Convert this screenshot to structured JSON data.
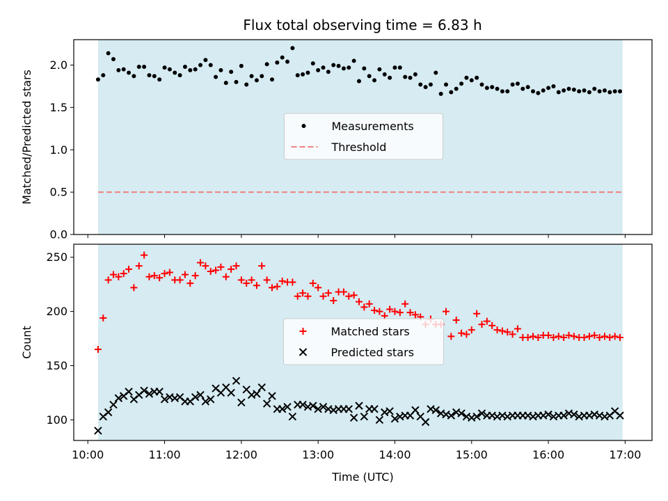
{
  "title": "Flux total observing time = 6.83 h",
  "colors": {
    "shade": "#add8e6",
    "measurement": "#000000",
    "threshold": "#f08080",
    "matched": "#ff0000",
    "predicted": "#000000"
  },
  "chart_data": [
    {
      "type": "scatter",
      "ylabel": "Matched/Predicted stars",
      "xlim": [
        "09:49",
        "17:21"
      ],
      "ylim": [
        0,
        2.3
      ],
      "yticks": [
        "0.0",
        "0.5",
        "1.0",
        "1.5",
        "2.0"
      ],
      "shaded_interval": [
        "10:08",
        "16:58"
      ],
      "legend": {
        "placement": "center",
        "entries": [
          "Measurements",
          "Threshold"
        ]
      },
      "threshold": {
        "name": "Threshold",
        "value": 0.5,
        "xrange": [
          "10:08",
          "16:58"
        ]
      },
      "series": [
        {
          "name": "Measurements",
          "x": [
            "10:08",
            "10:12",
            "10:16",
            "10:20",
            "10:24",
            "10:28",
            "10:32",
            "10:36",
            "10:40",
            "10:44",
            "10:48",
            "10:52",
            "10:56",
            "11:00",
            "11:04",
            "11:08",
            "11:12",
            "11:16",
            "11:20",
            "11:24",
            "11:28",
            "11:32",
            "11:36",
            "11:40",
            "11:44",
            "11:48",
            "11:52",
            "11:56",
            "12:00",
            "12:04",
            "12:08",
            "12:12",
            "12:16",
            "12:20",
            "12:24",
            "12:28",
            "12:32",
            "12:36",
            "12:40",
            "12:44",
            "12:48",
            "12:52",
            "12:56",
            "13:00",
            "13:04",
            "13:08",
            "13:12",
            "13:16",
            "13:20",
            "13:24",
            "13:28",
            "13:32",
            "13:36",
            "13:40",
            "13:44",
            "13:48",
            "13:52",
            "13:56",
            "14:00",
            "14:04",
            "14:08",
            "14:12",
            "14:16",
            "14:20",
            "14:24",
            "14:28",
            "14:32",
            "14:36",
            "14:40",
            "14:44",
            "14:48",
            "14:52",
            "14:56",
            "15:00",
            "15:04",
            "15:08",
            "15:12",
            "15:16",
            "15:20",
            "15:24",
            "15:28",
            "15:32",
            "15:36",
            "15:40",
            "15:44",
            "15:48",
            "15:52",
            "15:56",
            "16:00",
            "16:04",
            "16:08",
            "16:12",
            "16:16",
            "16:20",
            "16:24",
            "16:28",
            "16:32",
            "16:36",
            "16:40",
            "16:44",
            "16:48",
            "16:52",
            "16:56"
          ],
          "y": [
            1.83,
            1.88,
            2.14,
            2.07,
            1.94,
            1.95,
            1.91,
            1.87,
            1.98,
            1.98,
            1.88,
            1.87,
            1.83,
            1.97,
            1.95,
            1.91,
            1.88,
            1.98,
            1.94,
            1.95,
            2.0,
            2.06,
            2.0,
            1.86,
            1.94,
            1.79,
            1.92,
            1.8,
            1.99,
            1.77,
            1.87,
            1.82,
            1.87,
            2.01,
            1.83,
            2.03,
            2.09,
            2.04,
            2.2,
            1.88,
            1.89,
            1.91,
            2.02,
            1.94,
            1.97,
            1.92,
            2.0,
            1.99,
            1.96,
            1.97,
            2.05,
            1.81,
            1.96,
            1.87,
            1.82,
            1.95,
            1.89,
            1.85,
            1.97,
            1.97,
            1.86,
            1.85,
            1.89,
            1.77,
            1.74,
            1.77,
            1.91,
            1.66,
            1.77,
            1.68,
            1.72,
            1.78,
            1.85,
            1.82,
            1.85,
            1.77,
            1.73,
            1.74,
            1.72,
            1.69,
            1.69,
            1.77,
            1.78,
            1.72,
            1.74,
            1.69,
            1.67,
            1.7,
            1.73,
            1.75,
            1.68,
            1.7,
            1.72,
            1.71,
            1.69,
            1.7,
            1.68,
            1.72,
            1.69,
            1.7,
            1.68,
            1.69,
            1.69
          ]
        }
      ]
    },
    {
      "type": "scatter",
      "xlabel": "Time (UTC)",
      "ylabel": "Count",
      "xlim": [
        "09:49",
        "17:21"
      ],
      "ylim": [
        81,
        262
      ],
      "xticks": [
        "10:00",
        "11:00",
        "12:00",
        "13:00",
        "14:00",
        "15:00",
        "16:00",
        "17:00"
      ],
      "yticks": [
        "100",
        "150",
        "200",
        "250"
      ],
      "shaded_interval": [
        "10:08",
        "16:58"
      ],
      "legend": {
        "placement": "center",
        "entries": [
          "Matched stars",
          "Predicted stars"
        ]
      },
      "series": [
        {
          "name": "Matched stars",
          "x": [
            "10:08",
            "10:12",
            "10:16",
            "10:20",
            "10:24",
            "10:28",
            "10:32",
            "10:36",
            "10:40",
            "10:44",
            "10:48",
            "10:52",
            "10:56",
            "11:00",
            "11:04",
            "11:08",
            "11:12",
            "11:16",
            "11:20",
            "11:24",
            "11:28",
            "11:32",
            "11:36",
            "11:40",
            "11:44",
            "11:48",
            "11:52",
            "11:56",
            "12:00",
            "12:04",
            "12:08",
            "12:12",
            "12:16",
            "12:20",
            "12:24",
            "12:28",
            "12:32",
            "12:36",
            "12:40",
            "12:44",
            "12:48",
            "12:52",
            "12:56",
            "13:00",
            "13:04",
            "13:08",
            "13:12",
            "13:16",
            "13:20",
            "13:24",
            "13:28",
            "13:32",
            "13:36",
            "13:40",
            "13:44",
            "13:48",
            "13:52",
            "13:56",
            "14:00",
            "14:04",
            "14:08",
            "14:12",
            "14:16",
            "14:20",
            "14:24",
            "14:28",
            "14:32",
            "14:36",
            "14:40",
            "14:44",
            "14:48",
            "14:52",
            "14:56",
            "15:00",
            "15:04",
            "15:08",
            "15:12",
            "15:16",
            "15:20",
            "15:24",
            "15:28",
            "15:32",
            "15:36",
            "15:40",
            "15:44",
            "15:48",
            "15:52",
            "15:56",
            "16:00",
            "16:04",
            "16:08",
            "16:12",
            "16:16",
            "16:20",
            "16:24",
            "16:28",
            "16:32",
            "16:36",
            "16:40",
            "16:44",
            "16:48",
            "16:52",
            "16:56"
          ],
          "y": [
            165,
            194,
            229,
            234,
            232,
            235,
            239,
            222,
            242,
            252,
            232,
            233,
            231,
            235,
            236,
            229,
            229,
            234,
            226,
            233,
            245,
            242,
            237,
            238,
            241,
            232,
            239,
            242,
            229,
            226,
            229,
            224,
            242,
            229,
            222,
            223,
            228,
            227,
            227,
            214,
            217,
            214,
            226,
            222,
            214,
            217,
            210,
            218,
            218,
            214,
            215,
            209,
            204,
            207,
            201,
            200,
            196,
            202,
            200,
            199,
            207,
            199,
            197,
            195,
            188,
            193,
            188,
            188,
            200,
            177,
            192,
            180,
            179,
            183,
            198,
            188,
            191,
            187,
            183,
            182,
            181,
            179,
            184,
            176,
            176,
            177,
            176,
            178,
            178,
            176,
            177,
            176,
            178,
            177,
            176,
            176,
            177,
            178,
            176,
            177,
            176,
            177,
            176
          ]
        },
        {
          "name": "Predicted stars",
          "x": [
            "10:08",
            "10:12",
            "10:16",
            "10:20",
            "10:24",
            "10:28",
            "10:32",
            "10:36",
            "10:40",
            "10:44",
            "10:48",
            "10:52",
            "10:56",
            "11:00",
            "11:04",
            "11:08",
            "11:12",
            "11:16",
            "11:20",
            "11:24",
            "11:28",
            "11:32",
            "11:36",
            "11:40",
            "11:44",
            "11:48",
            "11:52",
            "11:56",
            "12:00",
            "12:04",
            "12:08",
            "12:12",
            "12:16",
            "12:20",
            "12:24",
            "12:28",
            "12:32",
            "12:36",
            "12:40",
            "12:44",
            "12:48",
            "12:52",
            "12:56",
            "13:00",
            "13:04",
            "13:08",
            "13:12",
            "13:16",
            "13:20",
            "13:24",
            "13:28",
            "13:32",
            "13:36",
            "13:40",
            "13:44",
            "13:48",
            "13:52",
            "13:56",
            "14:00",
            "14:04",
            "14:08",
            "14:12",
            "14:16",
            "14:20",
            "14:24",
            "14:28",
            "14:32",
            "14:36",
            "14:40",
            "14:44",
            "14:48",
            "14:52",
            "14:56",
            "15:00",
            "15:04",
            "15:08",
            "15:12",
            "15:16",
            "15:20",
            "15:24",
            "15:28",
            "15:32",
            "15:36",
            "15:40",
            "15:44",
            "15:48",
            "15:52",
            "15:56",
            "16:00",
            "16:04",
            "16:08",
            "16:12",
            "16:16",
            "16:20",
            "16:24",
            "16:28",
            "16:32",
            "16:36",
            "16:40",
            "16:44",
            "16:48",
            "16:52",
            "16:56"
          ],
          "y": [
            90,
            103,
            107,
            114,
            120,
            122,
            126,
            119,
            123,
            127,
            124,
            126,
            126,
            119,
            121,
            120,
            121,
            117,
            117,
            121,
            123,
            117,
            119,
            129,
            125,
            130,
            125,
            136,
            116,
            128,
            123,
            124,
            130,
            115,
            122,
            110,
            110,
            112,
            103,
            114,
            114,
            112,
            113,
            110,
            112,
            110,
            109,
            110,
            110,
            110,
            102,
            113,
            103,
            110,
            110,
            100,
            107,
            108,
            101,
            103,
            104,
            104,
            109,
            103,
            98,
            110,
            109,
            106,
            105,
            104,
            107,
            106,
            103,
            102,
            103,
            106,
            104,
            104,
            103,
            104,
            103,
            104,
            104,
            104,
            104,
            103,
            104,
            104,
            105,
            103,
            104,
            104,
            106,
            105,
            103,
            104,
            104,
            105,
            104,
            103,
            104,
            108,
            104
          ]
        }
      ]
    }
  ]
}
